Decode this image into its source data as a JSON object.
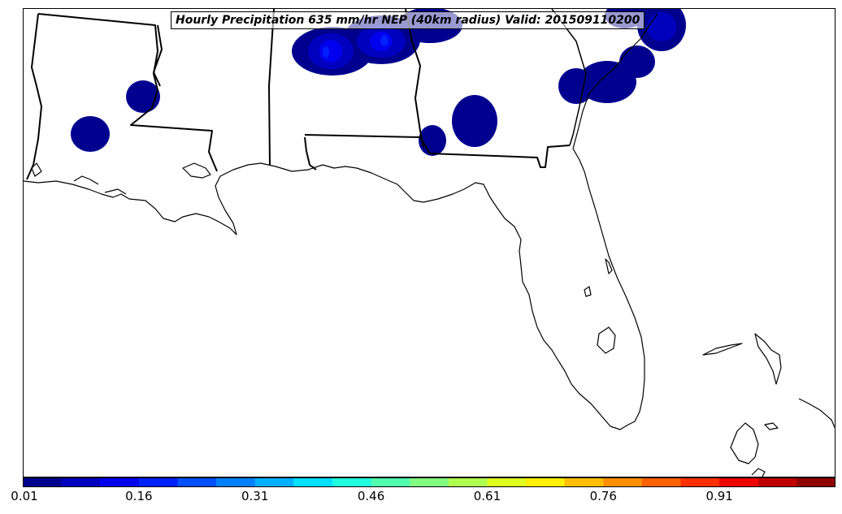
{
  "title": "Hourly Precipitation 635 mm/hr NEP (40km radius) Valid: 201509110200",
  "colorbar": {
    "ticks": [
      "0.01",
      "0.16",
      "0.31",
      "0.46",
      "0.61",
      "0.76",
      "0.91"
    ],
    "colors": [
      "#00008f",
      "#0000bf",
      "#0000ef",
      "#0020ff",
      "#0050ff",
      "#0080ff",
      "#00b0ff",
      "#00e0ff",
      "#20ffdf",
      "#50ffaf",
      "#80ff80",
      "#afff50",
      "#dfff20",
      "#ffef00",
      "#ffbf00",
      "#ff8f00",
      "#ff6000",
      "#ff3000",
      "#ef0000",
      "#bf0000",
      "#8f0000"
    ]
  },
  "precip_colors": {
    "level1": "#00008f",
    "level2": "#0000bf",
    "level3": "#0000ef",
    "level4": "#0020ff",
    "level5": "#0050ff"
  }
}
